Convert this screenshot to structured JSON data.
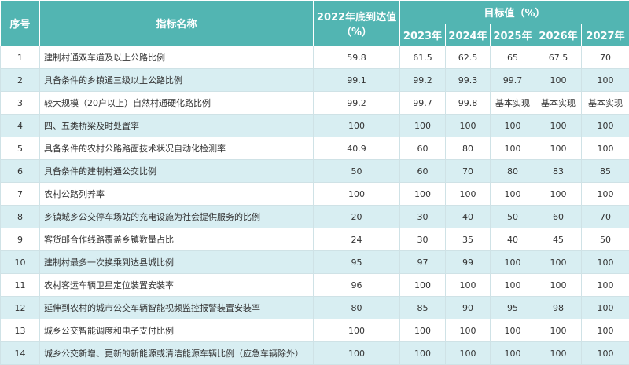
{
  "header": {
    "seq": "序号",
    "name": "指标名称",
    "baseline": [
      "2022年底到达值",
      "（%）"
    ],
    "target": "目标值（%）",
    "years": [
      "2023年",
      "2024年",
      "2025年",
      "2026年",
      "2027年"
    ]
  },
  "table": {
    "rows": [
      [
        1,
        "建制村通双车道及以上公路比例",
        59.8,
        61.5,
        62.5,
        65,
        67.5,
        70
      ],
      [
        2,
        "具备条件的乡镇通三级以上公路比例",
        99.1,
        99.2,
        99.3,
        99.7,
        100,
        100
      ],
      [
        3,
        "较大规模（20户以上）自然村通硬化路比例",
        99.2,
        99.7,
        99.8,
        "基本实现",
        "基本实现",
        "基本实现"
      ],
      [
        4,
        "四、五类桥梁及时处置率",
        100,
        100,
        100,
        100,
        100,
        100
      ],
      [
        5,
        "具备条件的农村公路路面技术状况自动化检测率",
        40.9,
        60,
        80,
        100,
        100,
        100
      ],
      [
        6,
        "具备条件的建制村通公交比例",
        50,
        60,
        70,
        80,
        83,
        85
      ],
      [
        7,
        "农村公路列养率",
        100,
        100,
        100,
        100,
        100,
        100
      ],
      [
        8,
        "乡镇城乡公交停车场站的充电设施为社会提供服务的比例",
        20,
        30,
        40,
        50,
        60,
        70
      ],
      [
        9,
        "客货邮合作线路覆盖乡镇数量占比",
        24,
        30,
        35,
        40,
        45,
        50
      ],
      [
        10,
        "建制村最多一次换乘到达县城比例",
        95,
        97,
        99,
        100,
        100,
        100
      ],
      [
        11,
        "农村客运车辆卫星定位装置安装率",
        96,
        100,
        100,
        100,
        100,
        100
      ],
      [
        12,
        "延伸到农村的城市公交车辆智能视频监控报警装置安装率",
        80,
        85,
        90,
        95,
        98,
        100
      ],
      [
        13,
        "城乡公交智能调度和电子支付比例",
        100,
        100,
        100,
        100,
        100,
        100
      ],
      [
        14,
        "城乡公交新增、更新的新能源或清洁能源车辆比例（应急车辆除外）",
        100,
        100,
        100,
        100,
        100,
        100
      ]
    ]
  }
}
